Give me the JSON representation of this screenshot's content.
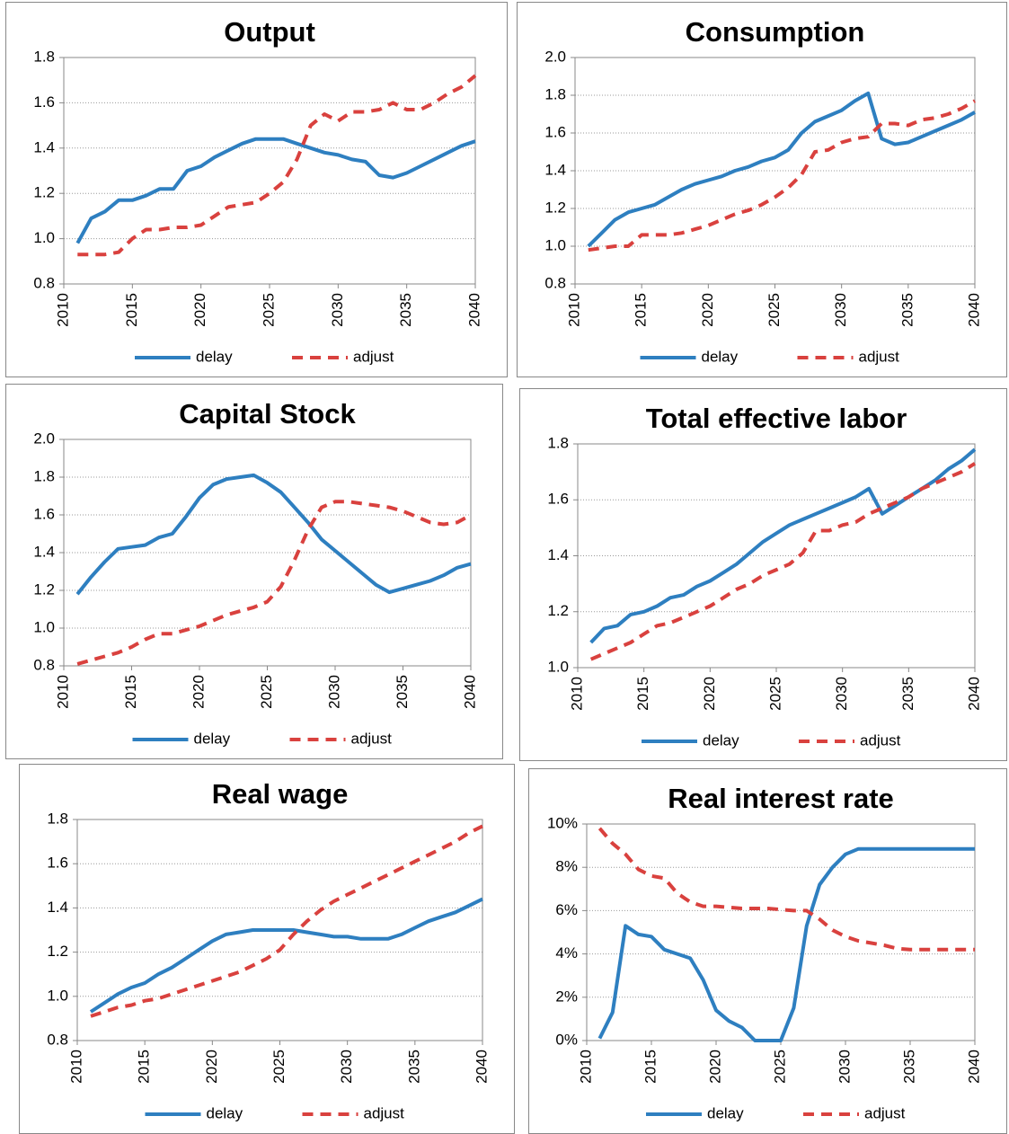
{
  "chart_data": [
    {
      "type": "line",
      "title": "Output",
      "x": [
        2011,
        2012,
        2013,
        2014,
        2015,
        2016,
        2017,
        2018,
        2019,
        2020,
        2021,
        2022,
        2023,
        2024,
        2025,
        2026,
        2027,
        2028,
        2029,
        2030,
        2031,
        2032,
        2033,
        2034,
        2035,
        2036,
        2037,
        2038,
        2039,
        2040
      ],
      "xlim": [
        2010,
        2040
      ],
      "xticks": [
        2010,
        2015,
        2020,
        2025,
        2030,
        2035,
        2040
      ],
      "ylim": [
        0.8,
        1.8
      ],
      "yticks": [
        {
          "value": 0.8,
          "label": "0.8"
        },
        {
          "value": 1,
          "label": "1.0"
        },
        {
          "value": 1.2,
          "label": "1.2"
        },
        {
          "value": 1.4,
          "label": "1.4"
        },
        {
          "value": 1.6,
          "label": "1.6"
        },
        {
          "value": 1.8,
          "label": "1.8"
        }
      ],
      "grid": true,
      "legend": "bottom",
      "series": [
        {
          "name": "delay",
          "color": "#2e7fc0",
          "line_style": "solid",
          "values": [
            0.98,
            1.09,
            1.12,
            1.17,
            1.17,
            1.19,
            1.22,
            1.22,
            1.3,
            1.32,
            1.36,
            1.39,
            1.42,
            1.44,
            1.44,
            1.44,
            1.42,
            1.4,
            1.38,
            1.37,
            1.35,
            1.34,
            1.28,
            1.27,
            1.29,
            1.32,
            1.35,
            1.38,
            1.41,
            1.43
          ]
        },
        {
          "name": "adjust",
          "color": "#d9413e",
          "line_style": "dashed",
          "values": [
            0.93,
            0.93,
            0.93,
            0.94,
            1.0,
            1.04,
            1.04,
            1.05,
            1.05,
            1.06,
            1.1,
            1.14,
            1.15,
            1.16,
            1.2,
            1.25,
            1.35,
            1.5,
            1.55,
            1.52,
            1.56,
            1.56,
            1.57,
            1.6,
            1.57,
            1.57,
            1.6,
            1.64,
            1.67,
            1.72
          ]
        }
      ]
    },
    {
      "type": "line",
      "title": "Consumption",
      "x": [
        2011,
        2012,
        2013,
        2014,
        2015,
        2016,
        2017,
        2018,
        2019,
        2020,
        2021,
        2022,
        2023,
        2024,
        2025,
        2026,
        2027,
        2028,
        2029,
        2030,
        2031,
        2032,
        2033,
        2034,
        2035,
        2036,
        2037,
        2038,
        2039,
        2040
      ],
      "xlim": [
        2010,
        2040
      ],
      "xticks": [
        2010,
        2015,
        2020,
        2025,
        2030,
        2035,
        2040
      ],
      "ylim": [
        0.8,
        2
      ],
      "yticks": [
        {
          "value": 0.8,
          "label": "0.8"
        },
        {
          "value": 1,
          "label": "1.0"
        },
        {
          "value": 1.2,
          "label": "1.2"
        },
        {
          "value": 1.4,
          "label": "1.4"
        },
        {
          "value": 1.6,
          "label": "1.6"
        },
        {
          "value": 1.8,
          "label": "1.8"
        },
        {
          "value": 2,
          "label": "2.0"
        }
      ],
      "grid": true,
      "legend": "bottom",
      "series": [
        {
          "name": "delay",
          "color": "#2e7fc0",
          "line_style": "solid",
          "values": [
            1.0,
            1.07,
            1.14,
            1.18,
            1.2,
            1.22,
            1.26,
            1.3,
            1.33,
            1.35,
            1.37,
            1.4,
            1.42,
            1.45,
            1.47,
            1.51,
            1.6,
            1.66,
            1.69,
            1.72,
            1.77,
            1.81,
            1.57,
            1.54,
            1.55,
            1.58,
            1.61,
            1.64,
            1.67,
            1.71
          ]
        },
        {
          "name": "adjust",
          "color": "#d9413e",
          "line_style": "dashed",
          "values": [
            0.98,
            0.99,
            1.0,
            1.0,
            1.06,
            1.06,
            1.06,
            1.07,
            1.09,
            1.11,
            1.14,
            1.17,
            1.19,
            1.22,
            1.26,
            1.31,
            1.38,
            1.5,
            1.51,
            1.55,
            1.57,
            1.58,
            1.65,
            1.65,
            1.64,
            1.67,
            1.68,
            1.7,
            1.73,
            1.77
          ]
        }
      ]
    },
    {
      "type": "line",
      "title": "Capital Stock",
      "x": [
        2011,
        2012,
        2013,
        2014,
        2015,
        2016,
        2017,
        2018,
        2019,
        2020,
        2021,
        2022,
        2023,
        2024,
        2025,
        2026,
        2027,
        2028,
        2029,
        2030,
        2031,
        2032,
        2033,
        2034,
        2035,
        2036,
        2037,
        2038,
        2039,
        2040
      ],
      "xlim": [
        2010,
        2040
      ],
      "xticks": [
        2010,
        2015,
        2020,
        2025,
        2030,
        2035,
        2040
      ],
      "ylim": [
        0.8,
        2
      ],
      "yticks": [
        {
          "value": 0.8,
          "label": "0.8"
        },
        {
          "value": 1,
          "label": "1.0"
        },
        {
          "value": 1.2,
          "label": "1.2"
        },
        {
          "value": 1.4,
          "label": "1.4"
        },
        {
          "value": 1.6,
          "label": "1.6"
        },
        {
          "value": 1.8,
          "label": "1.8"
        },
        {
          "value": 2,
          "label": "2.0"
        }
      ],
      "grid": true,
      "legend": "bottom",
      "series": [
        {
          "name": "delay",
          "color": "#2e7fc0",
          "line_style": "solid",
          "values": [
            1.18,
            1.27,
            1.35,
            1.42,
            1.43,
            1.44,
            1.48,
            1.5,
            1.59,
            1.69,
            1.76,
            1.79,
            1.8,
            1.81,
            1.77,
            1.72,
            1.64,
            1.56,
            1.47,
            1.41,
            1.35,
            1.29,
            1.23,
            1.19,
            1.21,
            1.23,
            1.25,
            1.28,
            1.32,
            1.34
          ]
        },
        {
          "name": "adjust",
          "color": "#d9413e",
          "line_style": "dashed",
          "values": [
            0.81,
            0.83,
            0.85,
            0.87,
            0.9,
            0.94,
            0.97,
            0.97,
            0.99,
            1.01,
            1.04,
            1.07,
            1.09,
            1.11,
            1.14,
            1.22,
            1.36,
            1.52,
            1.64,
            1.67,
            1.67,
            1.66,
            1.65,
            1.64,
            1.62,
            1.59,
            1.56,
            1.55,
            1.56,
            1.6
          ]
        }
      ]
    },
    {
      "type": "line",
      "title": "Total effective labor",
      "x": [
        2011,
        2012,
        2013,
        2014,
        2015,
        2016,
        2017,
        2018,
        2019,
        2020,
        2021,
        2022,
        2023,
        2024,
        2025,
        2026,
        2027,
        2028,
        2029,
        2030,
        2031,
        2032,
        2033,
        2034,
        2035,
        2036,
        2037,
        2038,
        2039,
        2040
      ],
      "xlim": [
        2010,
        2040
      ],
      "xticks": [
        2010,
        2015,
        2020,
        2025,
        2030,
        2035,
        2040
      ],
      "ylim": [
        1,
        1.8
      ],
      "yticks": [
        {
          "value": 1,
          "label": "1.0"
        },
        {
          "value": 1.2,
          "label": "1.2"
        },
        {
          "value": 1.4,
          "label": "1.4"
        },
        {
          "value": 1.6,
          "label": "1.6"
        },
        {
          "value": 1.8,
          "label": "1.8"
        }
      ],
      "grid": true,
      "legend": "bottom",
      "series": [
        {
          "name": "delay",
          "color": "#2e7fc0",
          "line_style": "solid",
          "values": [
            1.09,
            1.14,
            1.15,
            1.19,
            1.2,
            1.22,
            1.25,
            1.26,
            1.29,
            1.31,
            1.34,
            1.37,
            1.41,
            1.45,
            1.48,
            1.51,
            1.53,
            1.55,
            1.57,
            1.59,
            1.61,
            1.64,
            1.55,
            1.58,
            1.61,
            1.64,
            1.67,
            1.71,
            1.74,
            1.78
          ]
        },
        {
          "name": "adjust",
          "color": "#d9413e",
          "line_style": "dashed",
          "values": [
            1.03,
            1.05,
            1.07,
            1.09,
            1.12,
            1.15,
            1.16,
            1.18,
            1.2,
            1.22,
            1.25,
            1.28,
            1.3,
            1.33,
            1.35,
            1.37,
            1.41,
            1.49,
            1.49,
            1.51,
            1.52,
            1.55,
            1.57,
            1.59,
            1.61,
            1.64,
            1.66,
            1.68,
            1.7,
            1.73
          ]
        }
      ]
    },
    {
      "type": "line",
      "title": "Real wage",
      "x": [
        2011,
        2012,
        2013,
        2014,
        2015,
        2016,
        2017,
        2018,
        2019,
        2020,
        2021,
        2022,
        2023,
        2024,
        2025,
        2026,
        2027,
        2028,
        2029,
        2030,
        2031,
        2032,
        2033,
        2034,
        2035,
        2036,
        2037,
        2038,
        2039,
        2040
      ],
      "xlim": [
        2010,
        2040
      ],
      "xticks": [
        2010,
        2015,
        2020,
        2025,
        2030,
        2035,
        2040
      ],
      "ylim": [
        0.8,
        1.8
      ],
      "yticks": [
        {
          "value": 0.8,
          "label": "0.8"
        },
        {
          "value": 1,
          "label": "1.0"
        },
        {
          "value": 1.2,
          "label": "1.2"
        },
        {
          "value": 1.4,
          "label": "1.4"
        },
        {
          "value": 1.6,
          "label": "1.6"
        },
        {
          "value": 1.8,
          "label": "1.8"
        }
      ],
      "grid": true,
      "legend": "bottom",
      "series": [
        {
          "name": "delay",
          "color": "#2e7fc0",
          "line_style": "solid",
          "values": [
            0.93,
            0.97,
            1.01,
            1.04,
            1.06,
            1.1,
            1.13,
            1.17,
            1.21,
            1.25,
            1.28,
            1.29,
            1.3,
            1.3,
            1.3,
            1.3,
            1.29,
            1.28,
            1.27,
            1.27,
            1.26,
            1.26,
            1.26,
            1.28,
            1.31,
            1.34,
            1.36,
            1.38,
            1.41,
            1.44
          ]
        },
        {
          "name": "adjust",
          "color": "#d9413e",
          "line_style": "dashed",
          "values": [
            0.91,
            0.93,
            0.95,
            0.96,
            0.98,
            0.99,
            1.01,
            1.03,
            1.05,
            1.07,
            1.09,
            1.11,
            1.14,
            1.17,
            1.21,
            1.28,
            1.34,
            1.39,
            1.43,
            1.46,
            1.49,
            1.52,
            1.55,
            1.58,
            1.61,
            1.64,
            1.67,
            1.7,
            1.74,
            1.77
          ]
        }
      ]
    },
    {
      "type": "line",
      "title": "Real interest rate",
      "x": [
        2011,
        2012,
        2013,
        2014,
        2015,
        2016,
        2017,
        2018,
        2019,
        2020,
        2021,
        2022,
        2023,
        2024,
        2025,
        2026,
        2027,
        2028,
        2029,
        2030,
        2031,
        2032,
        2033,
        2034,
        2035,
        2036,
        2037,
        2038,
        2039,
        2040
      ],
      "xlim": [
        2010,
        2040
      ],
      "xticks": [
        2010,
        2015,
        2020,
        2025,
        2030,
        2035,
        2040
      ],
      "ylim": [
        0,
        10
      ],
      "yticks": [
        {
          "value": 0,
          "label": "0%"
        },
        {
          "value": 2,
          "label": "2%"
        },
        {
          "value": 4,
          "label": "4%"
        },
        {
          "value": 6,
          "label": "6%"
        },
        {
          "value": 8,
          "label": "8%"
        },
        {
          "value": 10,
          "label": "10%"
        }
      ],
      "grid": true,
      "legend": "bottom",
      "series": [
        {
          "name": "delay",
          "color": "#2e7fc0",
          "line_style": "solid",
          "values": [
            0.1,
            1.3,
            5.3,
            4.9,
            4.8,
            4.2,
            4.0,
            3.8,
            2.8,
            1.4,
            0.9,
            0.6,
            0,
            0,
            0,
            1.5,
            5.3,
            7.2,
            8.0,
            8.6,
            8.85,
            8.85,
            8.85,
            8.85,
            8.85,
            8.85,
            8.85,
            8.85,
            8.85,
            8.85
          ]
        },
        {
          "name": "adjust",
          "color": "#d9413e",
          "line_style": "dashed",
          "values": [
            9.8,
            9.1,
            8.6,
            7.9,
            7.6,
            7.5,
            6.8,
            6.4,
            6.2,
            6.2,
            6.15,
            6.1,
            6.1,
            6.1,
            6.05,
            6.0,
            6.0,
            5.6,
            5.1,
            4.8,
            4.6,
            4.5,
            4.4,
            4.25,
            4.2,
            4.2,
            4.2,
            4.2,
            4.2,
            4.2
          ]
        }
      ]
    }
  ]
}
